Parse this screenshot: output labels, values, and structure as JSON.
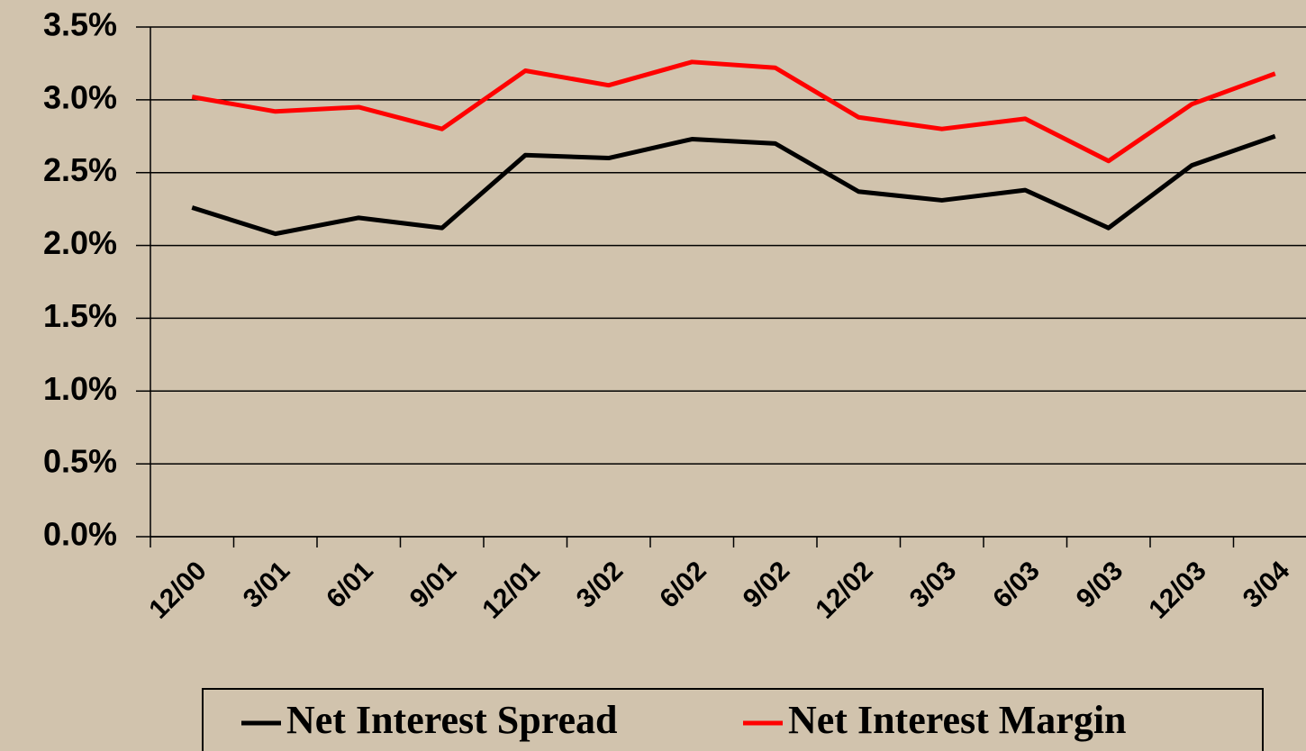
{
  "chart_data": {
    "type": "line",
    "categories": [
      "12/00",
      "3/01",
      "6/01",
      "9/01",
      "12/01",
      "3/02",
      "6/02",
      "9/02",
      "12/02",
      "3/03",
      "6/03",
      "9/03",
      "12/03",
      "3/04"
    ],
    "series": [
      {
        "name": "Net Interest Spread",
        "color": "#000000",
        "values": [
          2.26,
          2.08,
          2.19,
          2.12,
          2.62,
          2.6,
          2.73,
          2.7,
          2.37,
          2.31,
          2.38,
          2.12,
          2.55,
          2.75
        ]
      },
      {
        "name": "Net Interest Margin",
        "color": "#ff0000",
        "values": [
          3.02,
          2.92,
          2.95,
          2.8,
          3.2,
          3.1,
          3.26,
          3.22,
          2.88,
          2.8,
          2.87,
          2.58,
          2.97,
          3.18
        ]
      }
    ],
    "ylim": [
      0,
      3.5
    ],
    "yticks": [
      {
        "value": 0,
        "label": "0.0%"
      },
      {
        "value": 0.5,
        "label": "0.5%"
      },
      {
        "value": 1,
        "label": "1.0%"
      },
      {
        "value": 1.5,
        "label": "1.5%"
      },
      {
        "value": 2,
        "label": "2.0%"
      },
      {
        "value": 2.5,
        "label": "2.5%"
      },
      {
        "value": 3,
        "label": "3.0%"
      },
      {
        "value": 3.5,
        "label": "3.5%"
      }
    ],
    "grid": true
  }
}
